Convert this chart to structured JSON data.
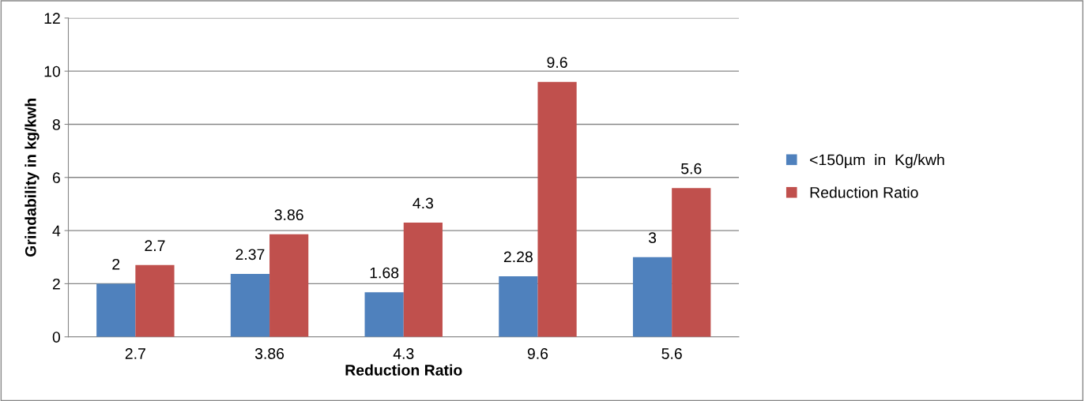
{
  "chart_data": {
    "type": "bar",
    "xlabel": "Reduction Ratio",
    "ylabel": "Grindability in kg/kwh",
    "categories": [
      "2.7",
      "3.86",
      "4.3",
      "9.6",
      "5.6"
    ],
    "series": [
      {
        "name": "<150µm  in  Kg/kwh",
        "color": "#4f81bd",
        "values": [
          2,
          2.37,
          1.68,
          2.28,
          3
        ]
      },
      {
        "name": "Reduction Ratio",
        "color": "#c0504d",
        "values": [
          2.7,
          3.86,
          4.3,
          9.6,
          5.6
        ]
      }
    ],
    "ylim": [
      0,
      12
    ],
    "yticks": [
      0,
      2,
      4,
      6,
      8,
      10,
      12
    ],
    "grid": "y",
    "legend": "right",
    "data_labels": true
  }
}
